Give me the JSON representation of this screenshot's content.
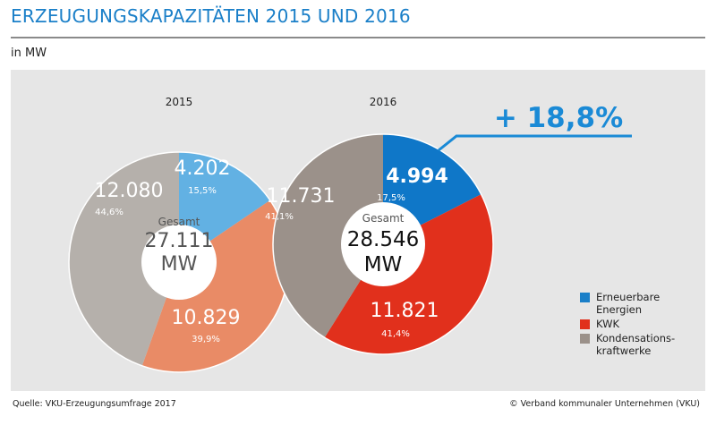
{
  "header": {
    "title": "ERZEUGUNGSKAPAZITÄTEN 2015 UND 2016",
    "unit": "in MW"
  },
  "chart_data": {
    "type": "pie",
    "unit": "MW",
    "categories": [
      "Erneuerbare Energien",
      "KWK",
      "Kondensationskraftwerke"
    ],
    "series": [
      {
        "name": "2015",
        "values": [
          4202,
          10829,
          12080
        ],
        "value_labels": [
          "4.202",
          "10.829",
          "12.080"
        ],
        "percent_labels": [
          "15,5%",
          "39,9%",
          "44,6%"
        ],
        "total_caption": "Gesamt",
        "total_value": "27.111",
        "total_unit": "MW",
        "colors": [
          "#62b1e3",
          "#e98b66",
          "#b5b0ab"
        ]
      },
      {
        "name": "2016",
        "values": [
          4994,
          11821,
          11731
        ],
        "value_labels": [
          "4.994",
          "11.821",
          "11.731"
        ],
        "percent_labels": [
          "17,5%",
          "41,4%",
          "41,1%"
        ],
        "total_caption": "Gesamt",
        "total_value": "28.546",
        "total_unit": "MW",
        "colors": [
          "#0f77c8",
          "#e1301c",
          "#9b918a"
        ]
      }
    ],
    "callout": "+ 18,8%",
    "callout_color": "#1a8ad6",
    "legend": [
      {
        "label": "Erneuerbare\nEnergien",
        "color": "#1a7fc8"
      },
      {
        "label": "KWK",
        "color": "#e1301c"
      },
      {
        "label": "Kondensations-\nkraftwerke",
        "color": "#9b918a"
      }
    ]
  },
  "footer": {
    "source": "Quelle: VKU-Erzeugungsumfrage 2017",
    "copyright": "© Verband kommunaler Unternehmen (VKU)"
  }
}
